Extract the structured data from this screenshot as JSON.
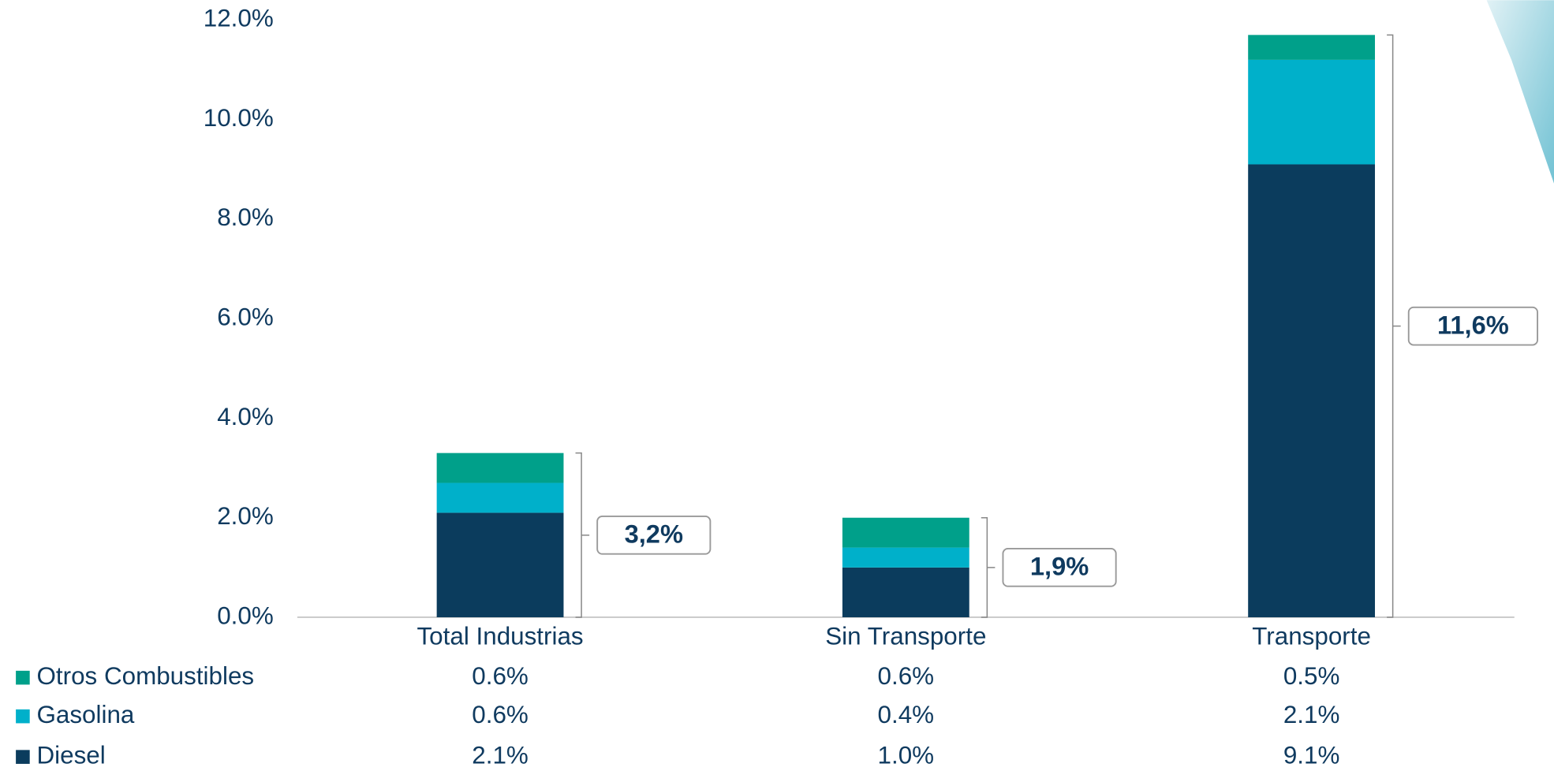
{
  "chart_data": {
    "type": "bar",
    "stacked": true,
    "categories": [
      "Total Industrias",
      "Sin Transporte",
      "Transporte"
    ],
    "series": [
      {
        "name": "Diesel",
        "color": "#0b3c5d",
        "values": [
          2.1,
          1.0,
          9.1
        ],
        "value_labels": [
          "2.1%",
          "1.0%",
          "9.1%"
        ]
      },
      {
        "name": "Gasolina",
        "color": "#00b0ca",
        "values": [
          0.6,
          0.4,
          2.1
        ],
        "value_labels": [
          "0.6%",
          "0.4%",
          "2.1%"
        ]
      },
      {
        "name": "Otros Combustibles",
        "color": "#00a08a",
        "values": [
          0.6,
          0.6,
          0.5
        ],
        "value_labels": [
          "0.6%",
          "0.6%",
          "0.5%"
        ]
      }
    ],
    "total_labels": [
      "3,2%",
      "1,9%",
      "11,6%"
    ],
    "ylim": [
      0,
      12
    ],
    "yticks": [
      {
        "value": 0,
        "label": "0.0%"
      },
      {
        "value": 2,
        "label": "2.0%"
      },
      {
        "value": 4,
        "label": "4.0%"
      },
      {
        "value": 6,
        "label": "6.0%"
      },
      {
        "value": 8,
        "label": "8.0%"
      },
      {
        "value": 10,
        "label": "10.0%"
      },
      {
        "value": 12,
        "label": "12.0%"
      }
    ],
    "grid": false
  }
}
